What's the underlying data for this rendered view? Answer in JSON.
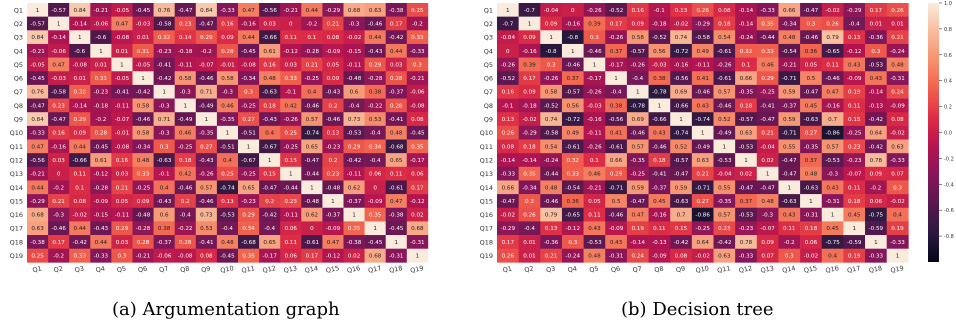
{
  "chart_data": [
    {
      "type": "heatmap",
      "panel_label": "(a)",
      "caption": "Argumentation graph",
      "x_labels": [
        "Q1",
        "Q2",
        "Q3",
        "Q4",
        "Q5",
        "Q6",
        "Q7",
        "Q8",
        "Q9",
        "Q10",
        "Q11",
        "Q12",
        "Q13",
        "Q14",
        "Q15",
        "Q16",
        "Q17",
        "Q18",
        "Q19"
      ],
      "y_labels": [
        "Q1",
        "Q2",
        "Q3",
        "Q4",
        "Q5",
        "Q6",
        "Q7",
        "Q8",
        "Q9",
        "Q10",
        "Q11",
        "Q12",
        "Q13",
        "Q14",
        "Q15",
        "Q16",
        "Q17",
        "Q18",
        "Q19"
      ],
      "values": [
        [
          1,
          -0.57,
          0.84,
          -0.21,
          -0.05,
          -0.45,
          0.76,
          -0.47,
          0.84,
          -0.33,
          0.47,
          -0.56,
          -0.21,
          0.44,
          -0.29,
          0.68,
          0.63,
          -0.38,
          0.25
        ],
        [
          -0.57,
          1,
          -0.14,
          -0.06,
          0.47,
          -0.03,
          -0.58,
          0.23,
          -0.47,
          0.16,
          -0.16,
          0.03,
          0,
          -0.2,
          0.21,
          -0.3,
          -0.46,
          0.17,
          -0.2
        ],
        [
          0.84,
          -0.14,
          1,
          -0.6,
          -0.08,
          0.01,
          0.32,
          0.14,
          0.29,
          0.09,
          0.44,
          -0.66,
          0.11,
          0.1,
          0.08,
          -0.02,
          0.44,
          -0.42,
          0.33
        ],
        [
          -0.21,
          -0.06,
          -0.6,
          1,
          0.01,
          0.31,
          -0.23,
          -0.18,
          -0.2,
          0.28,
          -0.45,
          0.61,
          -0.12,
          -0.28,
          -0.09,
          -0.15,
          -0.43,
          0.44,
          -0.33
        ],
        [
          -0.05,
          0.47,
          -0.08,
          0.01,
          1,
          -0.05,
          -0.41,
          -0.11,
          -0.07,
          -0.01,
          -0.08,
          0.16,
          0.03,
          0.21,
          0.05,
          -0.11,
          0.29,
          0.03,
          0.3
        ],
        [
          -0.45,
          -0.03,
          0.01,
          0.31,
          -0.05,
          1,
          -0.42,
          0.58,
          -0.46,
          0.58,
          -0.34,
          0.48,
          0.33,
          -0.25,
          0.09,
          -0.48,
          -0.28,
          0.28,
          -0.21
        ],
        [
          0.76,
          -0.58,
          0.32,
          -0.23,
          -0.41,
          -0.42,
          1,
          -0.3,
          0.71,
          -0.3,
          0.3,
          -0.63,
          -0.1,
          0.4,
          -0.43,
          0.6,
          0.38,
          -0.37,
          -0.06
        ],
        [
          -0.47,
          0.23,
          -0.14,
          -0.18,
          -0.11,
          0.58,
          -0.3,
          1,
          -0.49,
          0.46,
          -0.25,
          0.18,
          0.42,
          -0.46,
          0.2,
          -0.4,
          -0.22,
          0.28,
          -0.08
        ],
        [
          0.84,
          -0.47,
          0.29,
          -0.2,
          -0.07,
          -0.46,
          0.71,
          -0.49,
          1,
          -0.35,
          0.27,
          -0.43,
          -0.26,
          0.57,
          -0.46,
          0.73,
          0.53,
          -0.41,
          0.08
        ],
        [
          -0.33,
          0.16,
          0.09,
          0.28,
          -0.01,
          0.58,
          -0.3,
          0.46,
          -0.35,
          1,
          -0.51,
          0.4,
          0.25,
          -0.74,
          0.13,
          -0.53,
          -0.4,
          0.48,
          -0.45
        ],
        [
          0.47,
          -0.16,
          0.44,
          -0.45,
          -0.08,
          -0.34,
          0.3,
          -0.25,
          0.27,
          -0.51,
          1,
          -0.67,
          -0.25,
          0.65,
          -0.23,
          0.29,
          0.34,
          -0.68,
          0.35
        ],
        [
          -0.56,
          0.03,
          -0.66,
          0.61,
          0.16,
          0.48,
          -0.63,
          0.18,
          -0.43,
          0.4,
          -0.67,
          1,
          0.15,
          -0.47,
          0.2,
          -0.42,
          -0.4,
          0.65,
          -0.17
        ],
        [
          -0.21,
          0,
          0.11,
          -0.12,
          0.03,
          0.33,
          -0.1,
          0.42,
          -0.26,
          0.25,
          -0.25,
          0.15,
          1,
          -0.44,
          0.23,
          -0.11,
          0.06,
          0.11,
          0.06
        ],
        [
          0.44,
          -0.2,
          0.1,
          -0.28,
          0.21,
          -0.25,
          0.4,
          -0.46,
          0.57,
          -0.74,
          0.65,
          -0.47,
          -0.44,
          1,
          -0.48,
          0.62,
          0,
          -0.61,
          0.17
        ],
        [
          -0.29,
          0.21,
          0.08,
          -0.09,
          0.05,
          0.09,
          -0.43,
          0.2,
          -0.46,
          0.13,
          -0.23,
          0.2,
          0.23,
          -0.48,
          1,
          -0.37,
          -0.09,
          0.47,
          -0.12
        ],
        [
          0.68,
          -0.3,
          -0.02,
          -0.15,
          -0.11,
          -0.48,
          0.6,
          -0.4,
          0.73,
          -0.53,
          0.29,
          -0.42,
          -0.11,
          0.62,
          -0.37,
          1,
          0.35,
          -0.38,
          0.02
        ],
        [
          0.63,
          -0.46,
          0.44,
          -0.43,
          0.29,
          -0.28,
          0.38,
          -0.22,
          0.53,
          -0.4,
          0.34,
          -0.4,
          0.06,
          0,
          -0.09,
          0.35,
          1,
          -0.45,
          0.68
        ],
        [
          -0.38,
          0.17,
          -0.42,
          0.44,
          0.03,
          0.28,
          -0.37,
          0.28,
          -0.41,
          0.48,
          -0.68,
          0.65,
          0.11,
          -0.61,
          0.47,
          -0.38,
          -0.45,
          1,
          -0.31
        ],
        [
          0.25,
          -0.2,
          0.33,
          -0.33,
          0.3,
          -0.21,
          -0.06,
          -0.08,
          0.08,
          -0.45,
          0.35,
          -0.17,
          0.06,
          0.17,
          -0.12,
          0.02,
          0.68,
          -0.31,
          1
        ]
      ]
    },
    {
      "type": "heatmap",
      "panel_label": "(b)",
      "caption": "Decision tree",
      "x_labels": [
        "Q1",
        "Q2",
        "Q3",
        "Q4",
        "Q5",
        "Q6",
        "Q7",
        "Q8",
        "Q9",
        "Q10",
        "Q11",
        "Q12",
        "Q13",
        "Q14",
        "Q15",
        "Q16",
        "Q17",
        "Q18",
        "Q19"
      ],
      "y_labels": [
        "Q1",
        "Q2",
        "Q3",
        "Q4",
        "Q5",
        "Q6",
        "Q7",
        "Q8",
        "Q9",
        "Q10",
        "Q11",
        "Q12",
        "Q13",
        "Q14",
        "Q15",
        "Q16",
        "Q17",
        "Q18",
        "Q19"
      ],
      "values": [
        [
          1,
          -0.7,
          -0.04,
          0,
          -0.26,
          -0.52,
          0.16,
          -0.1,
          0.13,
          0.26,
          0.08,
          -0.14,
          -0.33,
          0.66,
          -0.47,
          -0.02,
          -0.29,
          0.17,
          0.26
        ],
        [
          -0.7,
          1,
          0.09,
          -0.16,
          0.39,
          0.17,
          0.09,
          -0.18,
          -0.02,
          -0.29,
          0.18,
          -0.14,
          0.35,
          -0.34,
          0.3,
          0.26,
          -0.4,
          0.01,
          0.01
        ],
        [
          -0.04,
          0.09,
          1,
          -0.8,
          0.3,
          -0.26,
          0.58,
          -0.52,
          0.74,
          -0.58,
          0.54,
          -0.24,
          -0.44,
          0.48,
          -0.46,
          0.79,
          0.13,
          -0.36,
          0.21
        ],
        [
          0,
          -0.16,
          -0.8,
          1,
          -0.46,
          0.37,
          -0.57,
          0.56,
          -0.72,
          0.49,
          -0.61,
          0.32,
          0.33,
          -0.54,
          0.36,
          -0.65,
          -0.12,
          0.3,
          -0.24
        ],
        [
          -0.26,
          0.39,
          0.3,
          -0.46,
          1,
          -0.17,
          -0.26,
          -0.03,
          -0.16,
          -0.11,
          -0.26,
          0.1,
          0.46,
          -0.21,
          0.05,
          0.11,
          0.43,
          -0.53,
          0.48
        ],
        [
          -0.52,
          0.17,
          -0.26,
          0.37,
          -0.17,
          1,
          -0.4,
          0.38,
          -0.56,
          0.41,
          -0.61,
          0.66,
          0.29,
          -0.71,
          0.5,
          -0.46,
          -0.09,
          0.43,
          -0.31
        ],
        [
          0.16,
          0.09,
          0.58,
          -0.57,
          -0.26,
          -0.4,
          1,
          -0.78,
          0.69,
          -0.46,
          0.57,
          -0.35,
          -0.25,
          0.59,
          -0.47,
          0.47,
          0.19,
          -0.14,
          0.24
        ],
        [
          -0.1,
          -0.18,
          -0.52,
          0.56,
          -0.03,
          0.38,
          -0.78,
          1,
          -0.66,
          0.43,
          -0.46,
          0.18,
          -0.41,
          -0.37,
          0.45,
          -0.16,
          0.11,
          -0.13,
          -0.09
        ],
        [
          0.13,
          -0.02,
          0.74,
          -0.72,
          -0.16,
          -0.56,
          0.69,
          -0.66,
          1,
          -0.74,
          0.52,
          -0.57,
          -0.47,
          0.59,
          -0.63,
          0.7,
          0.15,
          -0.42,
          0.08
        ],
        [
          0.26,
          -0.29,
          -0.58,
          0.49,
          -0.11,
          0.41,
          -0.46,
          0.43,
          -0.74,
          1,
          -0.49,
          0.63,
          0.21,
          -0.71,
          0.27,
          -0.86,
          -0.25,
          0.64,
          -0.02
        ],
        [
          0.08,
          0.18,
          0.54,
          -0.61,
          -0.26,
          -0.61,
          0.57,
          -0.46,
          0.52,
          -0.49,
          1,
          -0.53,
          -0.04,
          0.55,
          -0.35,
          0.57,
          0.23,
          -0.42,
          0.63
        ],
        [
          -0.14,
          -0.14,
          -0.24,
          0.32,
          0.1,
          0.66,
          -0.35,
          0.18,
          -0.57,
          0.63,
          -0.53,
          1,
          0.02,
          -0.47,
          0.37,
          -0.53,
          -0.23,
          0.78,
          -0.33
        ],
        [
          -0.33,
          0.35,
          -0.44,
          0.33,
          0.46,
          0.29,
          -0.25,
          -0.41,
          -0.47,
          0.21,
          -0.04,
          0.02,
          1,
          -0.47,
          0.48,
          -0.3,
          -0.07,
          0.09,
          0.07
        ],
        [
          0.66,
          -0.34,
          0.48,
          -0.54,
          -0.21,
          -0.71,
          0.59,
          -0.37,
          0.59,
          -0.71,
          0.55,
          -0.47,
          -0.47,
          1,
          -0.63,
          0.43,
          0.11,
          -0.2,
          0.3
        ],
        [
          -0.47,
          0.3,
          -0.46,
          0.36,
          0.05,
          0.5,
          -0.47,
          0.45,
          -0.63,
          0.27,
          -0.35,
          0.37,
          0.48,
          -0.63,
          1,
          -0.31,
          0.18,
          0.06,
          -0.02
        ],
        [
          -0.02,
          0.26,
          0.79,
          -0.65,
          0.11,
          -0.46,
          0.47,
          -0.16,
          0.7,
          -0.86,
          0.57,
          -0.53,
          -0.3,
          0.43,
          -0.31,
          1,
          0.45,
          -0.75,
          0.4
        ],
        [
          -0.29,
          -0.4,
          0.13,
          -0.12,
          0.43,
          -0.09,
          0.19,
          0.11,
          0.15,
          -0.25,
          0.23,
          -0.23,
          -0.07,
          0.11,
          0.18,
          0.45,
          1,
          -0.59,
          0.19
        ],
        [
          0.17,
          0.01,
          -0.36,
          0.3,
          -0.53,
          0.43,
          -0.14,
          -0.13,
          -0.42,
          0.64,
          -0.42,
          0.78,
          0.09,
          -0.2,
          0.06,
          -0.75,
          -0.59,
          1,
          -0.33
        ],
        [
          0.26,
          0.01,
          0.21,
          -0.24,
          0.48,
          -0.31,
          0.24,
          -0.09,
          0.08,
          -0.02,
          0.63,
          -0.33,
          0.07,
          0.3,
          -0.02,
          0.4,
          0.19,
          -0.33,
          1
        ]
      ]
    }
  ],
  "colorbar": {
    "range": [
      -1,
      1
    ],
    "ticks": [
      "1.0",
      "0.8",
      "0.6",
      "0.4",
      "0.2",
      "0.0",
      "-0.2",
      "-0.4",
      "-0.6",
      "-0.8"
    ],
    "tick_values": [
      1.0,
      0.8,
      0.6,
      0.4,
      0.2,
      0.0,
      -0.2,
      -0.4,
      -0.6,
      -0.8
    ],
    "colormap": "rocket",
    "color_stops": [
      "#03051a",
      "#2b1940",
      "#57184e",
      "#84165a",
      "#b4144f",
      "#dd2c45",
      "#f1604c",
      "#f6916f",
      "#f8bc9c",
      "#faebdd"
    ]
  }
}
